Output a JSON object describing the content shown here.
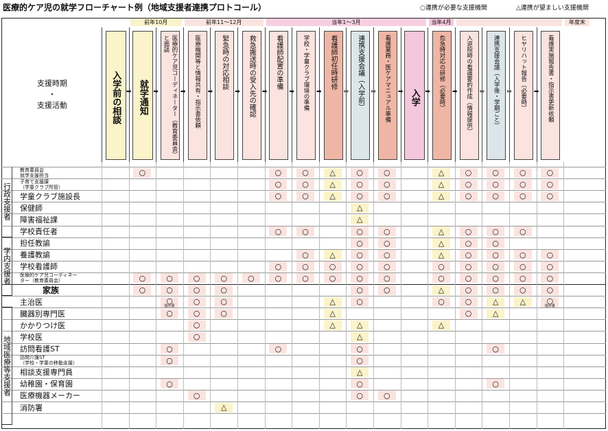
{
  "title": "医療的ケア児の就学フローチャート例（地域支援者連携プロトコール）",
  "legend": {
    "circle": "○連携が必要な支援機関",
    "triangle": "△連携が望ましい支援機関"
  },
  "header_label": {
    "line1": "支援時期",
    "dot": "・",
    "line2": "支援活動"
  },
  "periods": [
    {
      "label": "前年10月",
      "start": 1,
      "end": 2
    },
    {
      "label": "前年11～12月",
      "start": 3,
      "end": 5
    },
    {
      "label": "当年1～3月",
      "start": 6,
      "end": 11
    },
    {
      "label": "当年4月",
      "start": 12,
      "end": 12
    },
    {
      "label": "",
      "start": 13,
      "end": 16
    },
    {
      "label": "年度末",
      "start": 17,
      "end": 17
    }
  ],
  "columns": [
    {
      "label": "入学前の相談",
      "color": "#fbf3c9",
      "bold": true
    },
    {
      "label": "就学通知",
      "color": "#fbf3c9",
      "bold": true
    },
    {
      "label": "医療的ケア児コーディネーター（教育委員会）と面談",
      "color": "#fbe3df"
    },
    {
      "label": "医療機関等と情報共有・指示書依頼",
      "color": "#fbe3df"
    },
    {
      "label": "緊急時の対応相談",
      "color": "#fbe3df"
    },
    {
      "label": "救急搬送時の受入先の確認",
      "color": "#fbe3df"
    },
    {
      "label": "看護師配置の準備",
      "color": "#fbe3df"
    },
    {
      "label": "学校・学童クラブ環境の準備",
      "color": "#fbe3df"
    },
    {
      "label": "看護師初任時研修",
      "color": "#f0b6a5"
    },
    {
      "label": "連携支援会議（入学前）",
      "color": "#dce6ea"
    },
    {
      "label": "看護業務・医ケアマニュアル準備",
      "color": "#f0b6a5"
    },
    {
      "label": "入学",
      "color": "#f5c7dc",
      "bold": true
    },
    {
      "label": "危急時対応の研修（必要時）",
      "color": "#f0b6a5"
    },
    {
      "label": "入退院時の看護要約作成（情報提供）",
      "color": "#fbe3df"
    },
    {
      "label": "連携支援会議（入学後・学期ごと）",
      "color": "#dce6ea"
    },
    {
      "label": "ヒヤリハット報告（必要時）",
      "color": "#fbe3df"
    },
    {
      "label": "看護実施報告書・指示書更新依頼",
      "color": "#fbe3df"
    }
  ],
  "connectors": [
    "➡",
    "➡",
    "➡",
    "➡",
    "➡",
    "➡",
    "➡",
    "➡",
    "⇔",
    "⇔",
    "➡",
    "➡",
    "➡",
    "⇔",
    "⇔",
    "➡"
  ],
  "groups": [
    {
      "label": "行政支援者",
      "start": 0,
      "end": 5
    },
    {
      "label": "学内支援者",
      "start": 6,
      "end": 10
    },
    {
      "label": "",
      "start": 11,
      "end": 11
    },
    {
      "label": "地域医療等支援者",
      "start": 12,
      "end": 21
    }
  ],
  "rows": [
    {
      "label": "教育委員会",
      "label2": "就学支援担当",
      "size": "s",
      "marks": "__O____OOAOO_AOOOO"
    },
    {
      "label": "子育て支援課",
      "label2": "（学童クラブ所管）",
      "size": "s",
      "marks": "_______OOAOO_AOOOO"
    },
    {
      "label": "学童クラブ施設長",
      "label2": "",
      "size": "m",
      "marks": "_______OOAOO_AOOOO"
    },
    {
      "label": "保健師",
      "label2": "",
      "size": "m",
      "marks": "__________A_______"
    },
    {
      "label": "障害福祉課",
      "label2": "",
      "size": "m",
      "marks": "__________A_______"
    },
    {
      "label": "学校責任者",
      "label2": "",
      "size": "m",
      "marks": "_______OO_OO_AOOO_"
    },
    {
      "label": "担任教諭",
      "label2": "",
      "size": "m",
      "marks": "__________OO_AOO__"
    },
    {
      "label": "養護教諭",
      "label2": "",
      "size": "m",
      "marks": "________OAOO_AOOOO"
    },
    {
      "label": "学校看護師",
      "label2": "",
      "size": "m",
      "marks": "_______OOOOO_OOOOO"
    },
    {
      "label": "医療的ケア児コーディネー",
      "label2": "ター（教育委員会）",
      "size": "s",
      "marks": "__OOOOOOOOOO_OOOOO"
    },
    {
      "label": "家族",
      "label2": "",
      "size": "b",
      "marks": "__OOOO____OO_AOOOO"
    },
    {
      "label": "主治医",
      "label2": "",
      "size": "m",
      "marks": "___OOO___AO__OOAAO"
    },
    {
      "label": "臓器別専門医",
      "label2": "",
      "size": "m",
      "marks": "___OOO___A____OA__"
    },
    {
      "label": "かかりつけ医",
      "label2": "",
      "size": "m",
      "marks": "____O____AA__A____"
    },
    {
      "label": "学校医",
      "label2": "",
      "size": "m",
      "marks": "____O_____A_______"
    },
    {
      "label": "訪問看護ST",
      "label2": "",
      "size": "m",
      "marks": "___O___O__O____O__"
    },
    {
      "label": "訪問介護ST",
      "label2": "（学校・学童の移動支援）",
      "size": "s",
      "marks": "___O______O_______"
    },
    {
      "label": "相談支援専門員",
      "label2": "",
      "size": "m",
      "marks": "__________A_______"
    },
    {
      "label": "幼稚園・保育園",
      "label2": "",
      "size": "m",
      "marks": "___O______O____O__"
    },
    {
      "label": "医療機器メーカー",
      "label2": "",
      "size": "m",
      "marks": "____O_____OO______"
    },
    {
      "label": "消防署",
      "label2": "",
      "size": "m",
      "marks": "_____A____________"
    }
  ],
  "notes": {
    "主治医-3": "指示書",
    "主治医-17": "指示書"
  },
  "mark_symbols": {
    "O": "○",
    "A": "△"
  },
  "mark_colors": {
    "O": "#fbe3df",
    "A": "#fbf3c9"
  }
}
